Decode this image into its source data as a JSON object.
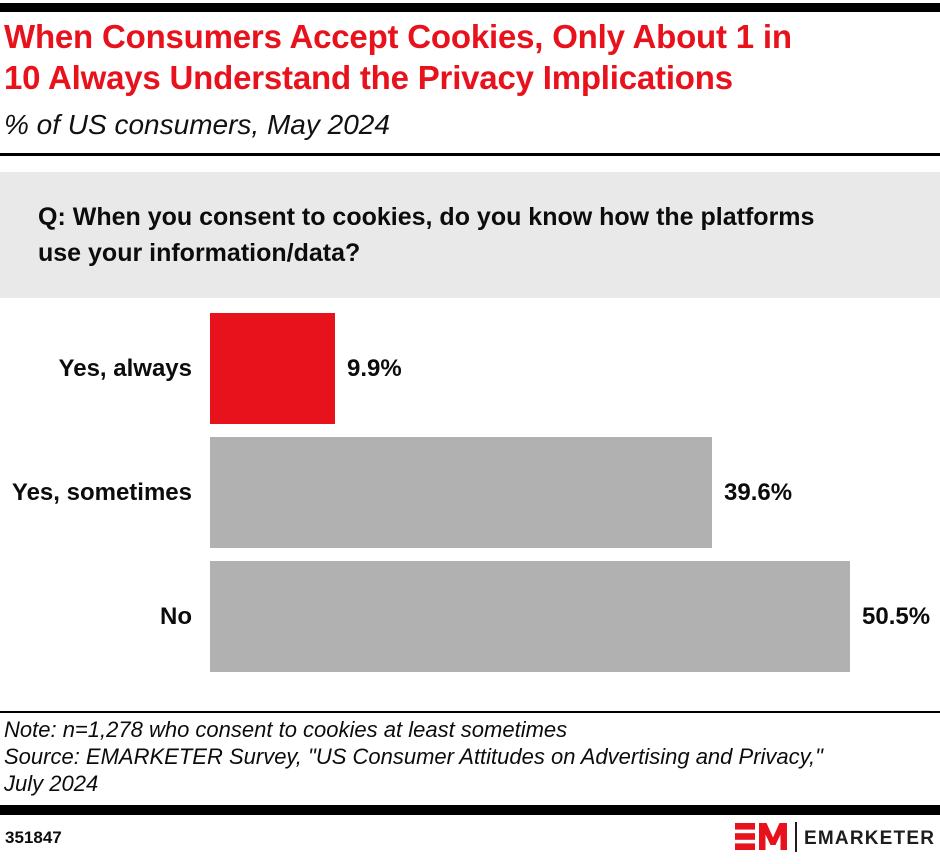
{
  "header": {
    "title": "When Consumers Accept Cookies, Only About 1 in 10 Always Understand the Privacy Implications",
    "title_lines": [
      "When Consumers Accept Cookies, Only About 1 in",
      "10 Always Understand the Privacy Implications"
    ],
    "subtitle": "% of US consumers, May 2024"
  },
  "question": {
    "lines": [
      "Q: When you consent to cookies, do you know how the platforms",
      "use your information/data?"
    ],
    "full_text": "Q: When you consent to cookies, do you know how the platforms use your information/data?"
  },
  "chart_data": {
    "type": "bar",
    "orientation": "horizontal",
    "title": "When Consumers Accept Cookies, Only About 1 in 10 Always Understand the Privacy Implications",
    "subtitle": "% of US consumers, May 2024",
    "categories": [
      "Yes, always",
      "Yes, sometimes",
      "No"
    ],
    "values": [
      9.9,
      39.6,
      50.5
    ],
    "value_labels": [
      "9.9%",
      "39.6%",
      "50.5%"
    ],
    "colors": [
      "#e8121d",
      "#b1b1b1",
      "#b1b1b1"
    ],
    "xlabel": "",
    "ylabel": "",
    "xlim": [
      0,
      56
    ],
    "grid": false,
    "legend": false,
    "data_labels_position": "right-of-bar"
  },
  "notes": {
    "lines": [
      "Note: n=1,278 who consent to cookies at least sometimes",
      "Source: EMARKETER Survey, \"US Consumer Attitudes on Advertising and Privacy,\"",
      "July 2024"
    ]
  },
  "footer": {
    "chart_id": "351847",
    "brand": "EMARKETER"
  },
  "colors": {
    "accent_red": "#e8121d",
    "bar_gray": "#b1b1b1",
    "question_bg": "#e9e9e9",
    "rule_black": "#000000",
    "logo_text": "#1d1d1b"
  }
}
